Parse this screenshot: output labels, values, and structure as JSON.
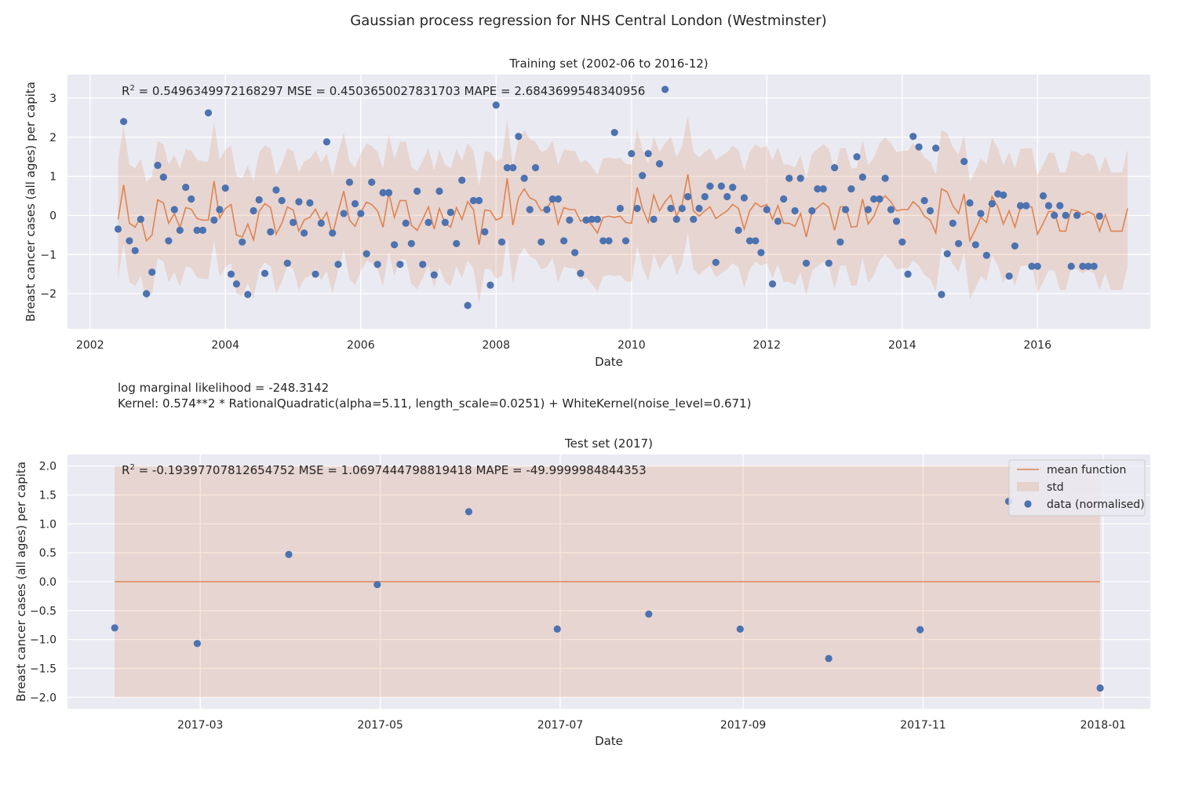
{
  "figure": {
    "suptitle": "Gaussian process regression for NHS Central London (Westminster)",
    "log_likelihood": "log marginal likelihood = -248.3142",
    "kernel": "Kernel: 0.574**2 * RationalQuadratic(alpha=5.11, length_scale=0.0251) + WhiteKernel(noise_level=0.671)"
  },
  "colors": {
    "plot_bg": "#eaeaf2",
    "grid": "#ffffff",
    "mean": "#dd8452",
    "std_fill": "#dd8452",
    "points": "#4c72b0"
  },
  "chart_data": [
    {
      "type": "scatter",
      "title": "Training set (2002-06 to 2016-12)",
      "metrics": {
        "r2_value": "0.5496349972168297",
        "mse": "0.4503650027831703",
        "mape": "2.6843699548340956"
      },
      "metrics_text": {
        "r2_label": "R",
        "r2_sup": "2",
        "rest": " = 0.5496349972168297  MSE = 0.4503650027831703  MAPE = 2.6843699548340956"
      },
      "xlabel": "Date",
      "ylabel": "Breast cancer cases (all ages) per capita",
      "xaxis_type": "date",
      "xlim": [
        "2001-09-01",
        "2017-09-01"
      ],
      "ylim": [
        -2.9,
        3.6
      ],
      "x_ticks": [
        "2002",
        "2004",
        "2006",
        "2008",
        "2010",
        "2012",
        "2014",
        "2016"
      ],
      "y_ticks": [
        "3",
        "2",
        "1",
        "0",
        "−1",
        "−2"
      ],
      "y_tick_values": [
        3,
        2,
        1,
        0,
        -1,
        -2
      ],
      "std_half_width": 1.5,
      "grid": true,
      "series": [
        {
          "name": "mean function",
          "kind": "line",
          "x_start": "2002-06",
          "x_step_months": 1,
          "values": [
            -0.1,
            0.78,
            -0.2,
            -0.3,
            -0.05,
            -0.65,
            -0.5,
            0.4,
            0.32,
            -0.2,
            0.05,
            -0.32,
            0.2,
            0.16,
            -0.08,
            -0.12,
            -0.12,
            0.88,
            -0.07,
            0.18,
            0.28,
            -0.5,
            -0.55,
            -0.22,
            -0.63,
            0.1,
            0.3,
            0.2,
            -0.48,
            -0.2,
            0.22,
            0.14,
            -0.4,
            -0.12,
            -0.05,
            0.16,
            -0.15,
            0.08,
            -0.5,
            0.1,
            0.62,
            -0.12,
            -0.28,
            0.08,
            0.34,
            0.28,
            0.12,
            -0.3,
            0.58,
            -0.05,
            0.38,
            0.38,
            -0.25,
            -0.38,
            -0.1,
            0.22,
            -0.35,
            0.18,
            -0.2,
            -0.3,
            0.2,
            -0.1,
            0.35,
            0.15,
            -0.75,
            0.14,
            0.12,
            -0.12,
            -0.05,
            0.95,
            -0.25,
            0.45,
            0.68,
            0.45,
            0.38,
            0.12,
            0.18,
            0.42,
            -0.22,
            0.2,
            0.15,
            0.15,
            -0.15,
            -0.08,
            -0.25,
            -0.45,
            -0.05,
            -0.02,
            -0.05,
            -0.02,
            -0.18,
            -0.2,
            0.72,
            0.18,
            -0.18,
            0.52,
            0.12,
            0.35,
            0.52,
            -0.02,
            0.28,
            1.05,
            0.12,
            -0.02,
            0.12,
            0.22,
            -0.08,
            0.02,
            0.12,
            0.28,
            0.18,
            -0.35,
            0.12,
            0.32,
            0.22,
            0.28,
            -0.1,
            0.25,
            -0.2,
            -0.2,
            -0.28,
            0.05,
            -0.55,
            0.08,
            0.2,
            0.32,
            0.2,
            -0.38,
            0.22,
            0.22,
            -0.3,
            -0.28,
            0.42,
            -0.22,
            -0.02,
            0.35,
            0.5,
            0.35,
            0.12,
            0.15,
            0.15,
            0.35,
            0.22,
            -0.02,
            -0.12,
            -0.45,
            0.68,
            0.6,
            0.25,
            0.05,
            0.55,
            -0.65,
            -0.35,
            -0.05,
            -0.18,
            0.48,
            0.22,
            -0.22,
            0.12,
            -0.3,
            0.2,
            0.22,
            0.22,
            -0.48,
            -0.2,
            0.1,
            0.1,
            -0.4,
            -0.4,
            0.15,
            0.12,
            0.02,
            0.1,
            0.02,
            -0.4,
            0.02,
            -0.4,
            -0.4,
            -0.4,
            0.18
          ]
        },
        {
          "name": "data (normalised)",
          "kind": "scatter",
          "x_start": "2002-06",
          "x_step_months": 1,
          "values": [
            -0.35,
            2.4,
            -0.65,
            -0.9,
            -0.1,
            -2.0,
            -1.45,
            1.28,
            0.98,
            -0.65,
            0.15,
            -0.38,
            0.72,
            0.42,
            -0.38,
            -0.38,
            2.62,
            -0.12,
            0.15,
            0.7,
            -1.5,
            -1.75,
            -0.68,
            -2.02,
            0.12,
            0.4,
            -1.48,
            -0.42,
            0.65,
            0.38,
            -1.22,
            -0.18,
            0.35,
            -0.45,
            0.32,
            -1.5,
            -0.2,
            1.88,
            -0.45,
            -1.25,
            0.05,
            0.85,
            0.3,
            0.05,
            -0.98,
            0.85,
            -1.25,
            0.58,
            0.58,
            -0.75,
            -1.25,
            -0.2,
            -0.72,
            0.62,
            -1.25,
            -0.18,
            -1.52,
            0.62,
            -0.18,
            0.08,
            -0.72,
            0.9,
            -2.3,
            0.38,
            0.38,
            -0.42,
            -1.78,
            2.82,
            -0.68,
            1.22,
            1.22,
            2.02,
            0.95,
            0.15,
            1.22,
            -0.68,
            0.15,
            0.42,
            0.42,
            -0.65,
            -0.12,
            -0.95,
            -1.48,
            -0.12,
            -0.1,
            -0.1,
            -0.65,
            -0.65,
            2.12,
            0.18,
            -0.65,
            1.58,
            0.18,
            1.02,
            1.58,
            -0.1,
            1.32,
            3.22,
            0.18,
            -0.1,
            0.18,
            0.48,
            -0.1,
            0.18,
            0.48,
            0.75,
            -1.2,
            0.75,
            0.48,
            0.72,
            -0.38,
            0.45,
            -0.65,
            -0.65,
            -0.95,
            0.15,
            -1.75,
            -0.15,
            0.42,
            0.95,
            0.12,
            0.95,
            -1.22,
            0.12,
            0.68,
            0.68,
            -1.22,
            1.22,
            -0.68,
            0.15,
            0.68,
            1.5,
            0.98,
            0.15,
            0.42,
            0.42,
            0.95,
            0.15,
            -0.15,
            -0.68,
            -1.5,
            2.02,
            1.75,
            0.38,
            0.12,
            1.72,
            -2.02,
            -0.98,
            -0.2,
            -0.72,
            1.38,
            0.32,
            -0.75,
            0.05,
            -1.02,
            0.3,
            0.55,
            0.52,
            -1.55,
            -0.78,
            0.25,
            0.25,
            -1.3,
            -1.3,
            0.5,
            0.25,
            0.0,
            0.25,
            0.0,
            -1.3,
            0.0,
            -1.3,
            -1.3,
            -1.3,
            -0.02
          ]
        }
      ]
    },
    {
      "type": "scatter",
      "title": "Test set (2017)",
      "metrics": {
        "r2_value": "-0.19397707812654752",
        "mse": "1.0697444798819418",
        "mape": "-49.9999984844353"
      },
      "metrics_text": {
        "r2_label": "R",
        "r2_sup": "2",
        "rest": " = -0.19397707812654752  MSE = 1.0697444798819418  MAPE = -49.9999984844353"
      },
      "xlabel": "Date",
      "ylabel": "Breast cancer cases (all ages) per capita",
      "xaxis_type": "date",
      "xlim": [
        "2017-01-15",
        "2018-01-17"
      ],
      "ylim": [
        -2.2,
        2.2
      ],
      "x_ticks": [
        "2017-03",
        "2017-05",
        "2017-07",
        "2017-09",
        "2017-11",
        "2018-01"
      ],
      "y_ticks": [
        "2.0",
        "1.5",
        "1.0",
        "0.5",
        "0.0",
        "−0.5",
        "−1.0",
        "−1.5",
        "−2.0"
      ],
      "y_tick_values": [
        2.0,
        1.5,
        1.0,
        0.5,
        0.0,
        -0.5,
        -1.0,
        -1.5,
        -2.0
      ],
      "std_band": [
        -2.0,
        2.0
      ],
      "grid": true,
      "legend_position": "top-right",
      "legend": [
        "mean function",
        "std",
        "data (normalised)"
      ],
      "series": [
        {
          "name": "mean function",
          "kind": "line",
          "x": [
            "2017-01-31",
            "2017-12-31"
          ],
          "values": [
            0.0,
            0.0
          ]
        },
        {
          "name": "data (normalised)",
          "kind": "scatter",
          "x": [
            "2017-01-31",
            "2017-02-28",
            "2017-03-31",
            "2017-04-30",
            "2017-05-31",
            "2017-06-30",
            "2017-07-31",
            "2017-08-31",
            "2017-09-30",
            "2017-10-31",
            "2017-11-30",
            "2017-12-31"
          ],
          "values": [
            -0.8,
            -1.07,
            0.47,
            -0.05,
            1.21,
            -0.82,
            -0.56,
            -0.82,
            -1.33,
            -0.83,
            1.39,
            -1.84
          ]
        }
      ]
    }
  ]
}
